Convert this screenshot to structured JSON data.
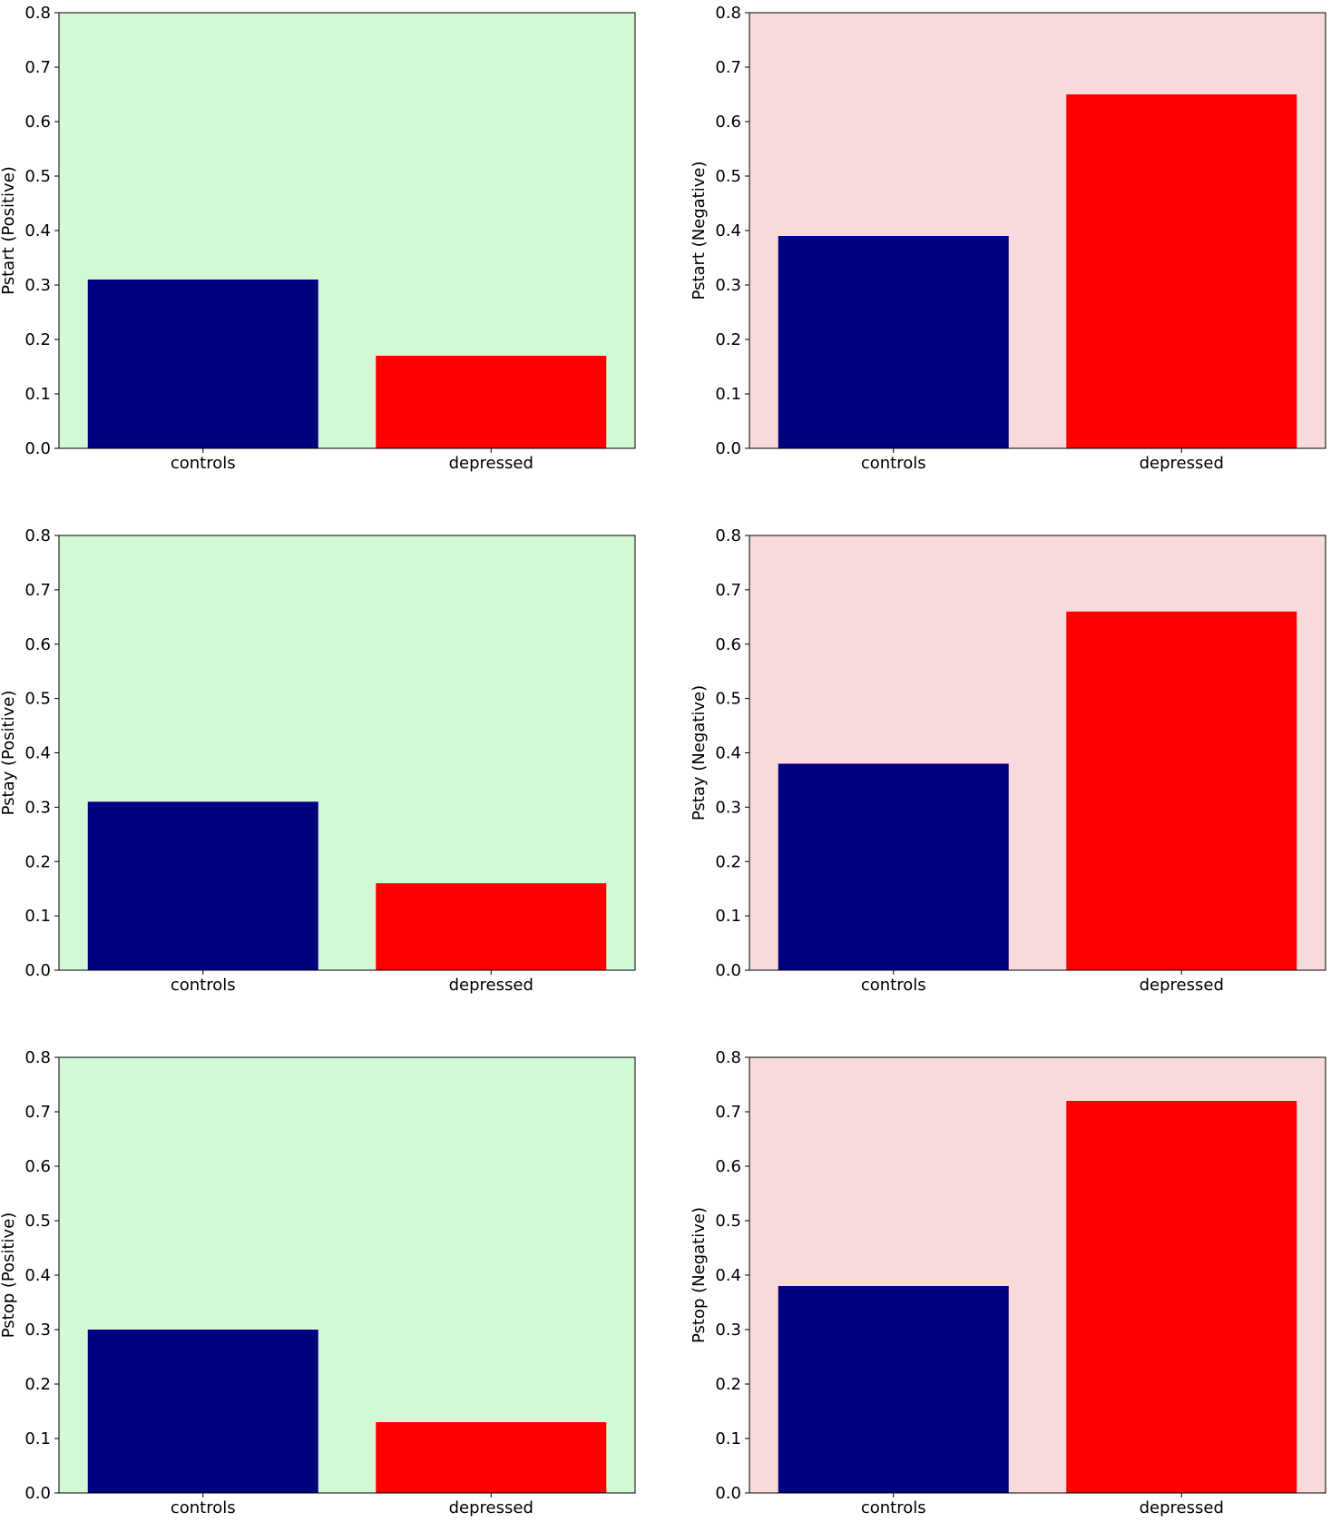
{
  "figure": {
    "colors": {
      "positive_panel_bg": "#d2f8d6",
      "negative_panel_bg": "#f8dada",
      "controls_bar": "#000080",
      "depressed_bar": "#ff0000",
      "axis": "#000000"
    }
  },
  "chart_data": [
    {
      "type": "bar",
      "panel": "row1-left",
      "background": "positive",
      "categories": [
        "controls",
        "depressed"
      ],
      "values": [
        0.31,
        0.17
      ],
      "ylabel": "Pstart (Positive)",
      "ylim": [
        0,
        0.8
      ],
      "yticks": [
        "0.0",
        "0.1",
        "0.2",
        "0.3",
        "0.4",
        "0.5",
        "0.6",
        "0.7",
        "0.8"
      ],
      "grid": false
    },
    {
      "type": "bar",
      "panel": "row1-right",
      "background": "negative",
      "categories": [
        "controls",
        "depressed"
      ],
      "values": [
        0.39,
        0.65
      ],
      "ylabel": "Pstart (Negative)",
      "ylim": [
        0,
        0.8
      ],
      "yticks": [
        "0.0",
        "0.1",
        "0.2",
        "0.3",
        "0.4",
        "0.5",
        "0.6",
        "0.7",
        "0.8"
      ],
      "grid": false
    },
    {
      "type": "bar",
      "panel": "row2-left",
      "background": "positive",
      "categories": [
        "controls",
        "depressed"
      ],
      "values": [
        0.31,
        0.16
      ],
      "ylabel": "Pstay (Positive)",
      "ylim": [
        0,
        0.8
      ],
      "yticks": [
        "0.0",
        "0.1",
        "0.2",
        "0.3",
        "0.4",
        "0.5",
        "0.6",
        "0.7",
        "0.8"
      ],
      "grid": false
    },
    {
      "type": "bar",
      "panel": "row2-right",
      "background": "negative",
      "categories": [
        "controls",
        "depressed"
      ],
      "values": [
        0.38,
        0.66
      ],
      "ylabel": "Pstay (Negative)",
      "ylim": [
        0,
        0.8
      ],
      "yticks": [
        "0.0",
        "0.1",
        "0.2",
        "0.3",
        "0.4",
        "0.5",
        "0.6",
        "0.7",
        "0.8"
      ],
      "grid": false
    },
    {
      "type": "bar",
      "panel": "row3-left",
      "background": "positive",
      "categories": [
        "controls",
        "depressed"
      ],
      "values": [
        0.3,
        0.13
      ],
      "ylabel": "Pstop (Positive)",
      "ylim": [
        0,
        0.8
      ],
      "yticks": [
        "0.0",
        "0.1",
        "0.2",
        "0.3",
        "0.4",
        "0.5",
        "0.6",
        "0.7",
        "0.8"
      ],
      "grid": false
    },
    {
      "type": "bar",
      "panel": "row3-right",
      "background": "negative",
      "categories": [
        "controls",
        "depressed"
      ],
      "values": [
        0.38,
        0.72
      ],
      "ylabel": "Pstop (Negative)",
      "ylim": [
        0,
        0.8
      ],
      "yticks": [
        "0.0",
        "0.1",
        "0.2",
        "0.3",
        "0.4",
        "0.5",
        "0.6",
        "0.7",
        "0.8"
      ],
      "grid": false
    }
  ]
}
